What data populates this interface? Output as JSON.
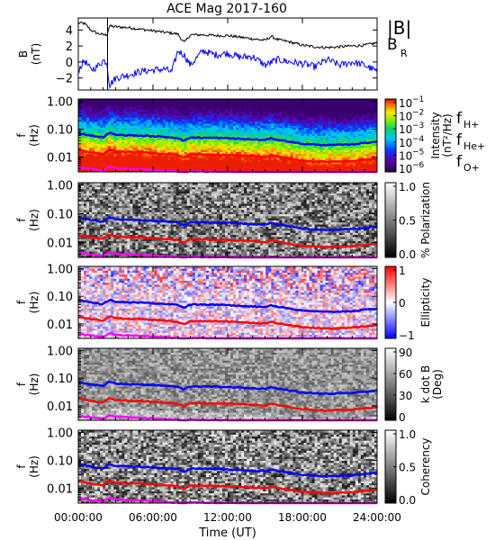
{
  "chart_data": {
    "type": "heatmap",
    "title": "ACE Mag 2017-160",
    "xlabel": "Time (UT)",
    "x_ticks": [
      "00:00:00",
      "06:00:00",
      "12:00:00",
      "18:00:00",
      "24:00:00"
    ],
    "xlim_hours": [
      0,
      24
    ],
    "field_panel": {
      "ylabel": "B\n(nT)",
      "y_ticks": [
        4,
        2,
        0,
        -2
      ],
      "ylim": [
        -3.5,
        5.5
      ],
      "series": [
        {
          "name": "|B|",
          "color": "#000000",
          "t": [
            0,
            0.5,
            1,
            1.5,
            2,
            2.3,
            2.5,
            3,
            4,
            5,
            6,
            7,
            8,
            8.5,
            9,
            10,
            11,
            12,
            13,
            14,
            15,
            15.5,
            16,
            17,
            18,
            19,
            20,
            21,
            22,
            23,
            24
          ],
          "v": [
            4.9,
            4.8,
            4.0,
            3.6,
            3.4,
            3.4,
            4.5,
            4.4,
            4.3,
            4.1,
            3.9,
            3.7,
            3.5,
            2.4,
            3.4,
            3.4,
            3.3,
            3.3,
            3.1,
            2.9,
            2.7,
            3.2,
            2.8,
            2.5,
            2.1,
            1.9,
            1.8,
            1.9,
            2.0,
            2.1,
            2.4
          ]
        },
        {
          "name": "B_R",
          "color": "#0000ff",
          "t": [
            0,
            0.5,
            1,
            1.5,
            2,
            2.3,
            2.5,
            3,
            4,
            5,
            6,
            7,
            7.5,
            8,
            8.5,
            9,
            10,
            11,
            12,
            13,
            14,
            15,
            16,
            17,
            18,
            19,
            20,
            21,
            22,
            23,
            24
          ],
          "v": [
            -1.0,
            0.2,
            -1.0,
            -0.6,
            0.2,
            0.0,
            -2.9,
            -2.0,
            -1.6,
            -1.2,
            -1.0,
            -0.9,
            -1.3,
            1.4,
            0.9,
            -0.4,
            1.4,
            0.9,
            1.1,
            0.6,
            0.7,
            -0.4,
            0.3,
            0.0,
            -0.2,
            -0.6,
            0.3,
            -0.4,
            0.0,
            -0.4,
            -1.2
          ]
        }
      ],
      "legend": [
        {
          "label": "|B|",
          "color": "#000000"
        },
        {
          "label": "B",
          "sub": "R",
          "color": "#0000ff"
        }
      ]
    },
    "spectral_ylabel": "f\n(Hz)",
    "spectral_y_ticks": [
      "1.00",
      "0.10",
      "0.01"
    ],
    "spectral_ylim_hz": [
      0.003,
      1.2
    ],
    "gyro_lines": [
      {
        "name": "f_H+",
        "color": "#0000ff",
        "t": [
          0,
          1,
          2,
          2.5,
          3,
          5,
          7,
          8,
          8.5,
          9,
          10,
          12,
          14,
          15,
          15.5,
          16,
          18,
          20,
          22,
          24
        ],
        "f": [
          0.072,
          0.06,
          0.051,
          0.075,
          0.063,
          0.059,
          0.053,
          0.049,
          0.038,
          0.051,
          0.05,
          0.048,
          0.043,
          0.041,
          0.048,
          0.042,
          0.03,
          0.027,
          0.029,
          0.036
        ]
      },
      {
        "name": "f_He+",
        "color": "#ff0000",
        "t": [
          0,
          1,
          2,
          2.5,
          3,
          5,
          7,
          8,
          8.5,
          9,
          10,
          12,
          14,
          15,
          15.5,
          16,
          18,
          20,
          22,
          24
        ],
        "f": [
          0.018,
          0.015,
          0.013,
          0.019,
          0.016,
          0.015,
          0.013,
          0.012,
          0.0095,
          0.013,
          0.0125,
          0.012,
          0.011,
          0.01,
          0.012,
          0.0105,
          0.0075,
          0.0068,
          0.0073,
          0.009
        ]
      },
      {
        "name": "f_O+",
        "color": "#ff00ff",
        "t": [
          0,
          1,
          2,
          2.5,
          3,
          5,
          7,
          8,
          8.5,
          9,
          10,
          12,
          14,
          15,
          15.5,
          16,
          18,
          20,
          22,
          24
        ],
        "f": [
          0.0045,
          0.0038,
          0.0033,
          0.0047,
          0.004,
          0.0037,
          0.0033,
          0.0031,
          0.0028,
          0.0032,
          0.0031,
          0.003,
          0.0028,
          0.0027,
          0.003,
          0.0027,
          0.0026,
          0.0026,
          0.0026,
          0.0026
        ]
      }
    ],
    "spectral_panels": [
      {
        "id": "intensity",
        "colorbar_label": "Intensity\n(nT²/Hz)",
        "colormap": "rainbow",
        "colorbar_ticks": [
          {
            "base": "10",
            "exp": "-1"
          },
          {
            "base": "10",
            "exp": "-2"
          },
          {
            "base": "10",
            "exp": "-3"
          },
          {
            "base": "10",
            "exp": "-4"
          },
          {
            "base": "10",
            "exp": "-5"
          },
          {
            "base": "10",
            "exp": "-6"
          }
        ],
        "legend": [
          {
            "label": "f",
            "sub": "H+",
            "color": "#0000ff"
          },
          {
            "label": "f",
            "sub": "He+",
            "color": "#ff0000"
          },
          {
            "label": "f",
            "sub": "O+",
            "color": "#ff00ff"
          }
        ]
      },
      {
        "id": "polarization",
        "colorbar_label": "% Polarization",
        "colormap": "gray",
        "colorbar_ticks": [
          "1.0",
          "0.5",
          "0.0"
        ]
      },
      {
        "id": "ellipticity",
        "colorbar_label": "Ellipticity",
        "colormap": "bwr",
        "colorbar_ticks": [
          "1",
          "0",
          "-1"
        ]
      },
      {
        "id": "kdotb",
        "colorbar_label": "k dot B\n(Deg)",
        "colormap": "gray",
        "colorbar_ticks": [
          "90",
          "60",
          "30",
          "0"
        ]
      },
      {
        "id": "coherency",
        "colorbar_label": "Coherency",
        "colormap": "gray",
        "colorbar_ticks": [
          "1.0",
          "0.5",
          "0.0"
        ]
      }
    ]
  }
}
